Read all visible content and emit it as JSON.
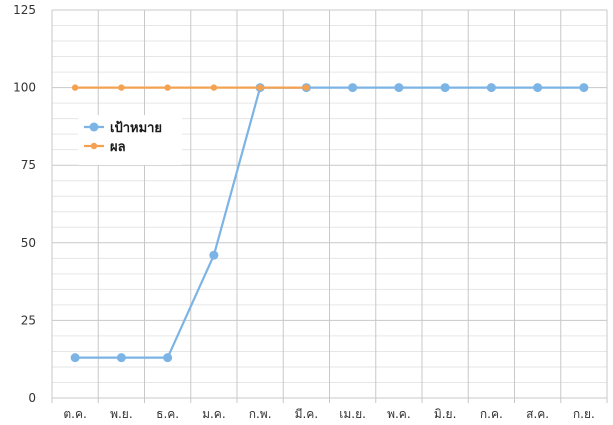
{
  "chart_data": {
    "type": "line",
    "categories": [
      "ต.ค.",
      "พ.ย.",
      "ธ.ค.",
      "ม.ค.",
      "ก.พ.",
      "มี.ค.",
      "เม.ย.",
      "พ.ค.",
      "มิ.ย.",
      "ก.ค.",
      "ส.ค.",
      "ก.ย."
    ],
    "series": [
      {
        "name": "เป้าหมาย",
        "color": "#7db4e6",
        "values": [
          13,
          13,
          13,
          46,
          100,
          100,
          100,
          100,
          100,
          100,
          100,
          100
        ]
      },
      {
        "name": "ผล",
        "color": "#f4a252",
        "values": [
          100,
          100,
          100,
          100,
          100,
          100,
          null,
          null,
          null,
          null,
          null,
          null
        ]
      }
    ],
    "y_ticks": [
      0,
      25,
      50,
      75,
      100,
      125
    ],
    "ylim": [
      0,
      125
    ],
    "grid": true,
    "legend_position": "left, inside plot area"
  }
}
